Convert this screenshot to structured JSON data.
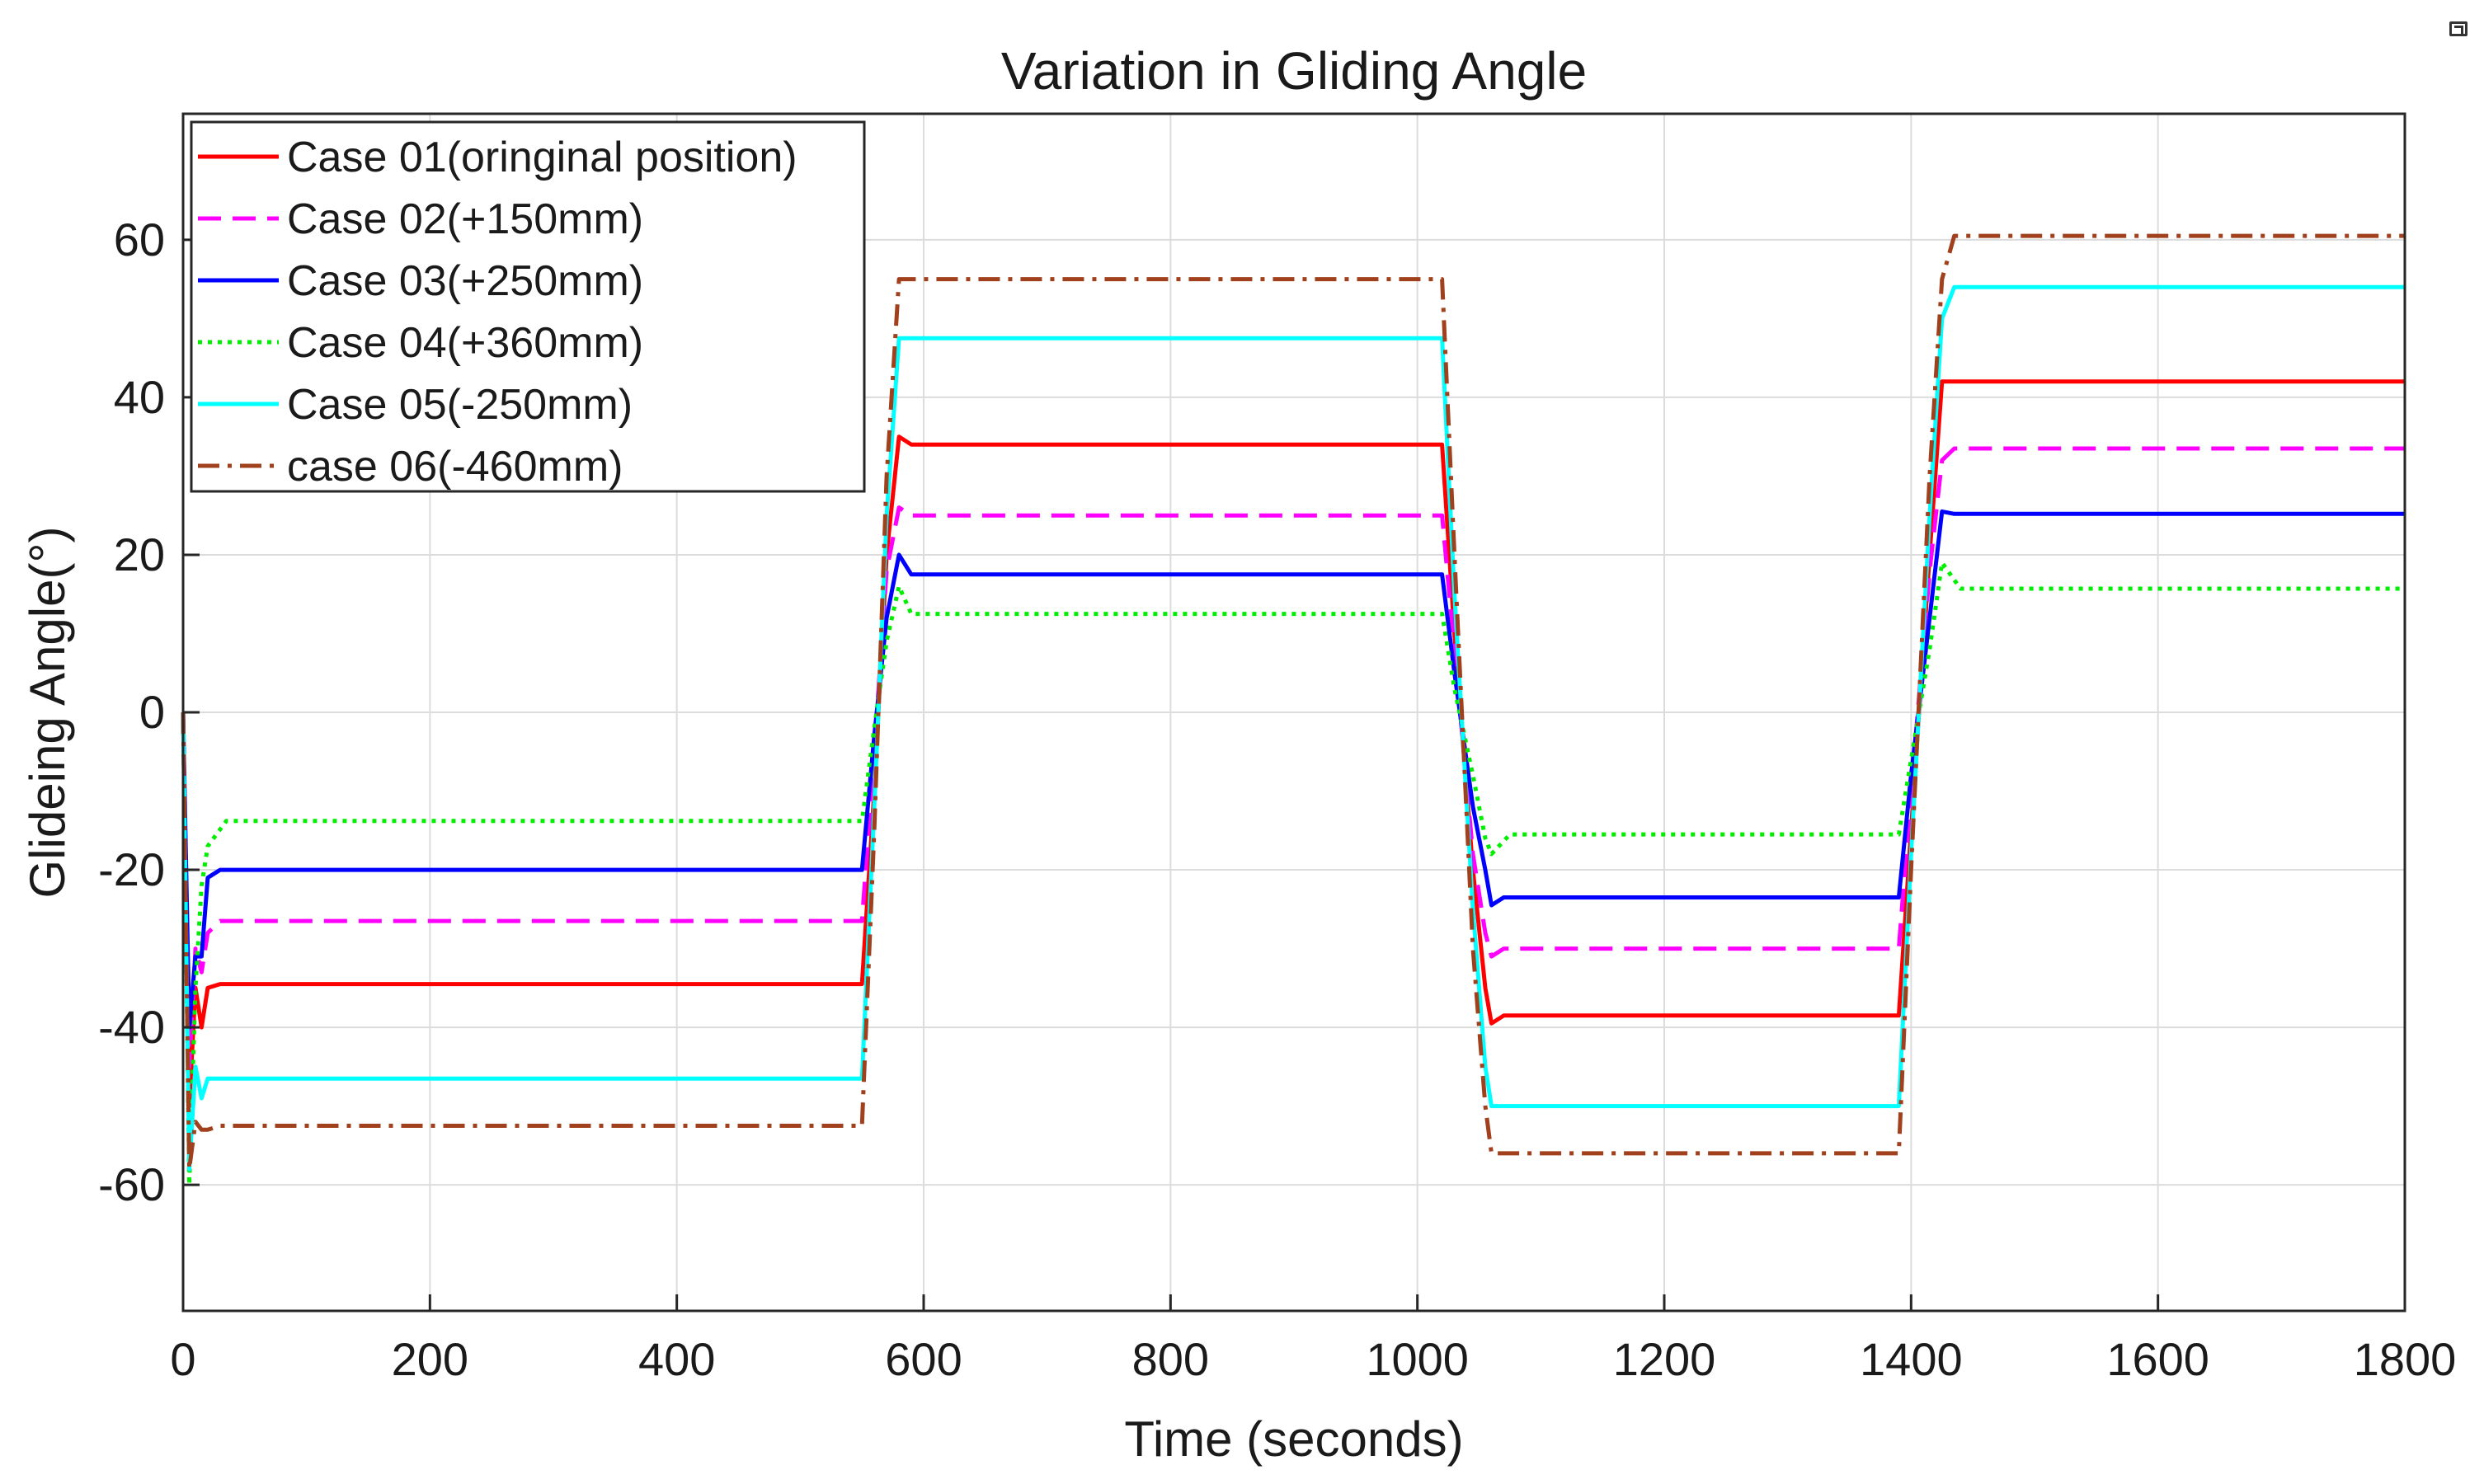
{
  "chart_data": {
    "type": "line",
    "title": "Variation in Gliding Angle",
    "xlabel": "Time (seconds)",
    "ylabel": "Glideing Angle(°)",
    "xlim": [
      0,
      1800
    ],
    "ylim": [
      -76,
      76
    ],
    "xticks": [
      0,
      200,
      400,
      600,
      800,
      1000,
      1200,
      1400,
      1600,
      1800
    ],
    "yticks": [
      -60,
      -40,
      -20,
      0,
      20,
      40,
      60
    ],
    "grid": true,
    "legend_position": "top-left",
    "series": [
      {
        "name": "Case 01(oringinal position)",
        "color": "#ff0000",
        "style": "solid",
        "x": [
          0,
          5,
          10,
          15,
          20,
          30,
          550,
          560,
          570,
          580,
          590,
          1020,
          1030,
          1045,
          1055,
          1060,
          1070,
          1390,
          1400,
          1415,
          1425,
          1435,
          1800
        ],
        "y": [
          0,
          -50,
          -35,
          -40,
          -35,
          -34.5,
          -34.5,
          -10,
          20,
          35,
          34,
          34,
          10,
          -20,
          -35,
          -39.5,
          -38.5,
          -38.5,
          -15,
          20,
          42,
          42,
          42
        ]
      },
      {
        "name": "Case 02(+150mm)",
        "color": "#ff00ff",
        "style": "dash",
        "x": [
          0,
          5,
          10,
          15,
          20,
          30,
          550,
          560,
          570,
          580,
          590,
          1020,
          1030,
          1045,
          1055,
          1060,
          1070,
          1390,
          1400,
          1415,
          1425,
          1435,
          1800
        ],
        "y": [
          0,
          -45,
          -30,
          -33,
          -28,
          -26.5,
          -26.5,
          -5,
          18,
          26,
          25,
          25,
          8,
          -18,
          -28,
          -31,
          -30,
          -30,
          -10,
          18,
          32,
          33.5,
          33.5
        ]
      },
      {
        "name": "Case 03(+250mm)",
        "color": "#0000ff",
        "style": "solid",
        "x": [
          0,
          5,
          10,
          15,
          20,
          30,
          550,
          560,
          570,
          580,
          590,
          1020,
          1030,
          1045,
          1055,
          1060,
          1070,
          1390,
          1400,
          1415,
          1425,
          1435,
          1800
        ],
        "y": [
          0,
          -40,
          -31,
          -31,
          -21,
          -20,
          -20,
          -3,
          12,
          20,
          17.5,
          17.5,
          5,
          -12,
          -20,
          -24.5,
          -23.5,
          -23.5,
          -8,
          12,
          25.5,
          25.2,
          25.2
        ]
      },
      {
        "name": "Case 04(+360mm)",
        "color": "#00ee00",
        "style": "dot",
        "x": [
          0,
          5,
          10,
          15,
          20,
          35,
          550,
          560,
          570,
          580,
          590,
          1020,
          1030,
          1045,
          1055,
          1060,
          1075,
          1390,
          1400,
          1415,
          1425,
          1440,
          1800
        ],
        "y": [
          0,
          -60,
          -35,
          -22,
          -17,
          -13.8,
          -13.8,
          -2,
          9,
          16,
          12.5,
          12.5,
          3,
          -8,
          -16,
          -18,
          -15.5,
          -15.5,
          -6,
          8,
          19,
          15.7,
          15.7
        ]
      },
      {
        "name": "Case 05(-250mm)",
        "color": "#00ffff",
        "style": "solid",
        "x": [
          0,
          5,
          10,
          15,
          20,
          30,
          550,
          560,
          570,
          580,
          590,
          1020,
          1030,
          1045,
          1055,
          1060,
          1070,
          1390,
          1400,
          1415,
          1425,
          1435,
          1800
        ],
        "y": [
          0,
          -58,
          -45,
          -49,
          -46.5,
          -46.5,
          -46.5,
          -12,
          25,
          47.5,
          47.5,
          47.5,
          15,
          -25,
          -45,
          -50,
          -50,
          -50,
          -18,
          25,
          50,
          54,
          54
        ]
      },
      {
        "name": "case 06(-460mm)",
        "color": "#a0401c",
        "style": "dashdot",
        "x": [
          0,
          5,
          10,
          15,
          20,
          30,
          550,
          560,
          570,
          580,
          590,
          1020,
          1030,
          1045,
          1055,
          1060,
          1070,
          1390,
          1400,
          1415,
          1425,
          1435,
          1800
        ],
        "y": [
          0,
          -58,
          -52,
          -53,
          -53,
          -52.5,
          -52.5,
          -15,
          30,
          55,
          55,
          55,
          20,
          -30,
          -50,
          -56,
          -56,
          -56,
          -20,
          30,
          55,
          60.5,
          60.5
        ]
      }
    ]
  }
}
